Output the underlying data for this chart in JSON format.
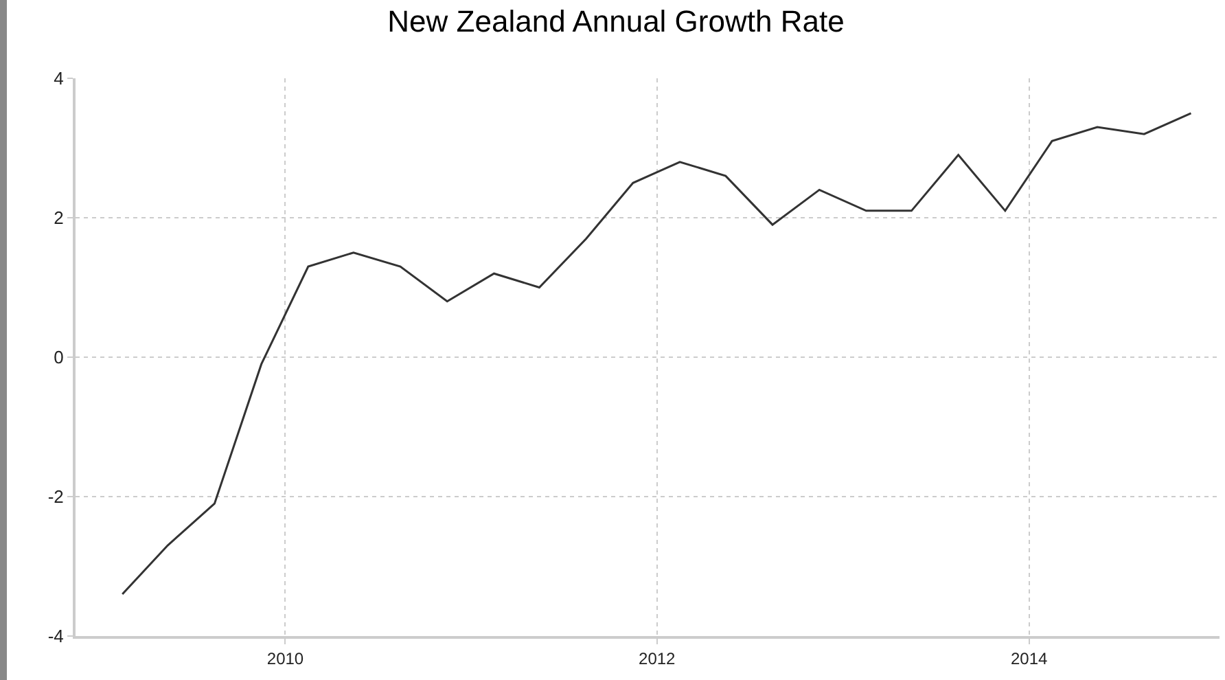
{
  "chart_data": {
    "type": "line",
    "title": "New Zealand Annual Growth Rate",
    "x": [
      "2009-02-15",
      "2009-05-15",
      "2009-08-15",
      "2009-11-15",
      "2010-02-15",
      "2010-05-15",
      "2010-08-15",
      "2010-11-15",
      "2011-02-15",
      "2011-05-15",
      "2011-08-15",
      "2011-11-15",
      "2012-02-15",
      "2012-05-15",
      "2012-08-15",
      "2012-11-15",
      "2013-02-15",
      "2013-05-15",
      "2013-08-15",
      "2013-11-15",
      "2014-02-15",
      "2014-05-15",
      "2014-08-15",
      "2014-11-15"
    ],
    "series": [
      {
        "color": "#333333",
        "values": [
          -3.4,
          -2.7,
          -2.1,
          -0.1,
          1.3,
          1.5,
          1.3,
          0.8,
          1.2,
          1.0,
          1.7,
          2.5,
          2.8,
          2.6,
          1.9,
          2.4,
          2.1,
          2.1,
          2.9,
          2.1,
          3.1,
          3.3,
          3.2,
          3.5
        ]
      }
    ],
    "xlim": [
      "2008-11-15",
      "2015-01-10"
    ],
    "xticks": [
      "2010",
      "2012",
      "2014"
    ],
    "ylim": [
      -4,
      4
    ],
    "yticks": [
      -4,
      -2,
      0,
      2,
      4
    ],
    "grid": true,
    "legend": false,
    "marker": "none",
    "line_style": "solid"
  }
}
